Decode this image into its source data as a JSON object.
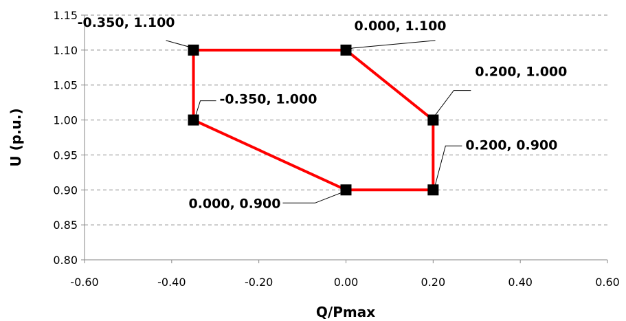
{
  "chart_data": {
    "type": "scatter",
    "xlabel": "Q/Pmax",
    "ylabel": "U (p.u.)",
    "xlim": [
      -0.6,
      0.6
    ],
    "ylim": [
      0.8,
      1.15
    ],
    "xticks": [
      "-0.60",
      "-0.40",
      "-0.20",
      "0.00",
      "0.20",
      "0.40",
      "0.60"
    ],
    "yticks": [
      "0.80",
      "0.85",
      "0.90",
      "0.95",
      "1.00",
      "1.05",
      "1.10",
      "1.15"
    ],
    "grid": "horizontal dashed",
    "line_color": "#ff0000",
    "marker_color": "#000000",
    "series": [
      {
        "closed": true,
        "points": [
          {
            "x": -0.35,
            "y": 1.1,
            "label": "-0.350, 1.100"
          },
          {
            "x": 0.0,
            "y": 1.1,
            "label": "0.000, 1.100"
          },
          {
            "x": 0.2,
            "y": 1.0,
            "label": "0.200, 1.000"
          },
          {
            "x": 0.2,
            "y": 0.9,
            "label": "0.200, 0.900"
          },
          {
            "x": 0.0,
            "y": 0.9,
            "label": "0.000, 0.900"
          },
          {
            "x": -0.35,
            "y": 1.0,
            "label": "-0.350, 1.000"
          }
        ]
      }
    ]
  }
}
